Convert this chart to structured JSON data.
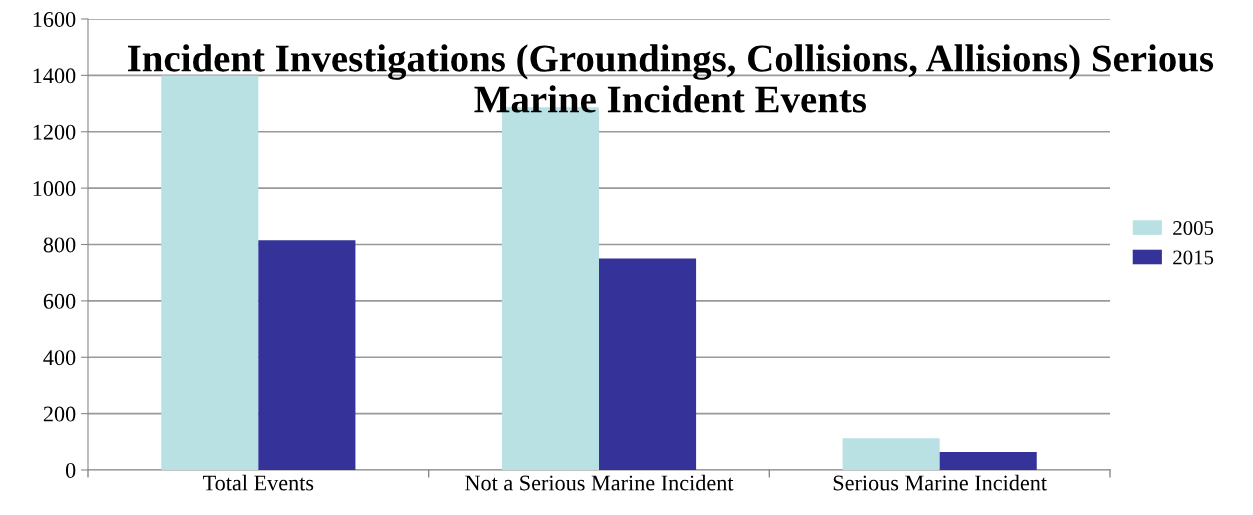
{
  "chart_data": {
    "type": "bar",
    "title": "Incident Investigations (Groundings, Collisions, Allisions) Serious Marine Incident Events",
    "categories": [
      "Total Events",
      "Not a Serious Marine Incident",
      "Serious Marine Incident"
    ],
    "series": [
      {
        "name": "2005",
        "color": "#b9e0e3",
        "values": [
          1400,
          1287,
          113
        ]
      },
      {
        "name": "2015",
        "color": "#353399",
        "values": [
          815,
          750,
          64
        ]
      }
    ],
    "ylim": [
      0,
      1600
    ],
    "yticks": [
      0,
      200,
      400,
      600,
      800,
      1000,
      1200,
      1400,
      1600
    ],
    "grid": "y",
    "legend": "right"
  }
}
